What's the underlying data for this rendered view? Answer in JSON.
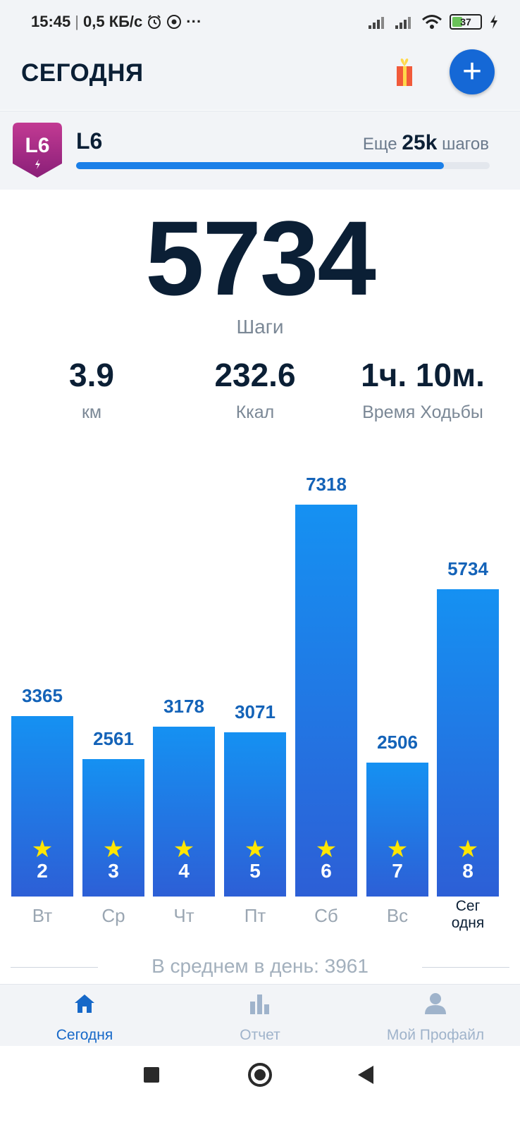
{
  "status_bar": {
    "time": "15:45",
    "separator": "|",
    "speed": "0,5 КБ/с",
    "more": "···",
    "battery": "37",
    "battery_level": 0.37
  },
  "header": {
    "title": "СЕГОДНЯ",
    "add_label": "+"
  },
  "level": {
    "badge": "L6",
    "name": "L6",
    "remaining_prefix": "Еще",
    "remaining_value": "25k",
    "remaining_suffix": "шагов",
    "progress": 0.89
  },
  "today": {
    "steps": "5734",
    "steps_label": "Шаги",
    "stats": [
      {
        "value": "3.9",
        "label": "км"
      },
      {
        "value": "232.6",
        "label": "Ккал"
      },
      {
        "value": "1ч. 10м.",
        "label": "Время Ходьбы"
      }
    ]
  },
  "chart_data": {
    "type": "bar",
    "categories": [
      "Вт",
      "Ср",
      "Чт",
      "Пт",
      "Сб",
      "Вс",
      "Сег\nодня"
    ],
    "values": [
      3365,
      2561,
      3178,
      3071,
      7318,
      2506,
      5734
    ],
    "labels": [
      "3365",
      "2561",
      "3178",
      "3071",
      "7318",
      "2506",
      "5734"
    ],
    "dates": [
      "2",
      "3",
      "4",
      "5",
      "6",
      "7",
      "8"
    ],
    "ylim": [
      0,
      7318
    ],
    "colors": {
      "bar_top": "#1591f2",
      "bar_bottom": "#2d5fd6",
      "star": "#ffe600"
    }
  },
  "average": {
    "text": "В среднем в день: 3961"
  },
  "bottom_nav": {
    "items": [
      {
        "label": "Сегодня",
        "active": true
      },
      {
        "label": "Отчет",
        "active": false
      },
      {
        "label": "Мой Профайл",
        "active": false
      }
    ]
  },
  "colors": {
    "accent": "#1568d6",
    "active_nav": "#1668c8",
    "inactive_nav": "#9fb3cb"
  }
}
